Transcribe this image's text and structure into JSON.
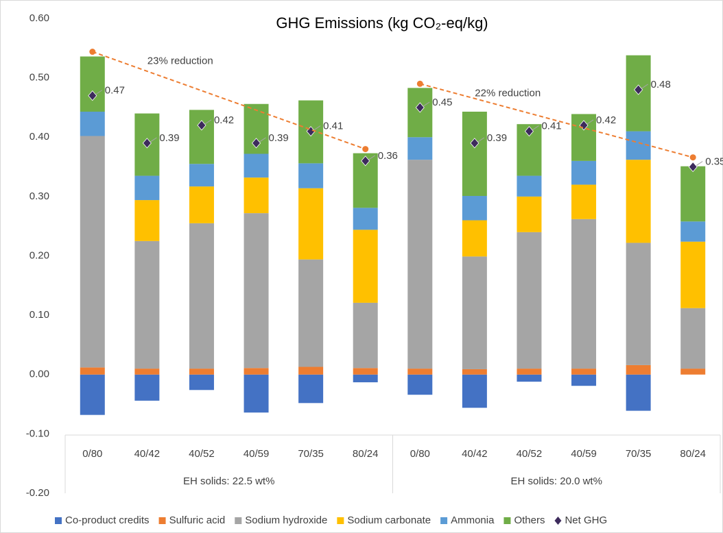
{
  "chart_data": {
    "type": "stacked_bar",
    "title": "GHG Emissions (kg CO₂-eq/kg)",
    "categories": [
      "0/80",
      "40/42",
      "40/52",
      "40/59",
      "70/35",
      "80/24",
      "0/80",
      "40/42",
      "40/52",
      "40/59",
      "70/35",
      "80/24"
    ],
    "groups": [
      {
        "label": "EH solids: 22.5 wt%",
        "reduction": "23% reduction",
        "start": 0.544,
        "end": 0.38
      },
      {
        "label": "EH solids: 20.0 wt%",
        "reduction": "22% reduction",
        "start": 0.49,
        "end": 0.366
      }
    ],
    "series": [
      {
        "name": "Co-product credits",
        "color": "#4472c4",
        "values": [
          -0.068,
          -0.044,
          -0.026,
          -0.064,
          -0.048,
          -0.013,
          -0.034,
          -0.056,
          -0.012,
          -0.019,
          -0.061,
          0
        ]
      },
      {
        "name": "Sulfuric acid",
        "color": "#ed7d31",
        "values": [
          0.012,
          0.01,
          0.01,
          0.011,
          0.013,
          0.011,
          0.01,
          0.009,
          0.01,
          0.01,
          0.016,
          0.01
        ]
      },
      {
        "name": "Sodium hydroxide",
        "color": "#a5a5a5",
        "values": [
          0.39,
          0.215,
          0.245,
          0.261,
          0.181,
          0.11,
          0.352,
          0.19,
          0.23,
          0.252,
          0.206,
          0.102
        ]
      },
      {
        "name": "Sodium carbonate",
        "color": "#ffc000",
        "values": [
          0,
          0.069,
          0.062,
          0.06,
          0.12,
          0.123,
          0,
          0.061,
          0.06,
          0.058,
          0.14,
          0.112
        ]
      },
      {
        "name": "Ammonia",
        "color": "#5b9bd5",
        "values": [
          0.041,
          0.041,
          0.038,
          0.04,
          0.042,
          0.037,
          0.038,
          0.041,
          0.035,
          0.04,
          0.048,
          0.034
        ]
      },
      {
        "name": "Others",
        "color": "#70ad47",
        "values": [
          0.093,
          0.105,
          0.091,
          0.084,
          0.106,
          0.092,
          0.083,
          0.142,
          0.087,
          0.079,
          0.128,
          0.093
        ]
      }
    ],
    "net": {
      "name": "Net GHG",
      "color": "#3d2b5c",
      "values": [
        0.47,
        0.39,
        0.42,
        0.39,
        0.41,
        0.36,
        0.45,
        0.39,
        0.41,
        0.42,
        0.48,
        0.35
      ]
    },
    "reduction_color": "#ed7d31",
    "ylim": [
      -0.2,
      0.6
    ],
    "yticks": [
      {
        "value": 0.6,
        "label": "0.60"
      },
      {
        "value": 0.5,
        "label": "0.50"
      },
      {
        "value": 0.4,
        "label": "0.40"
      },
      {
        "value": 0.3,
        "label": "0.30"
      },
      {
        "value": 0.2,
        "label": "0.20"
      },
      {
        "value": 0.1,
        "label": "0.10"
      },
      {
        "value": 0,
        "label": "0.00"
      },
      {
        "value": -0.1,
        "label": "-0.10"
      },
      {
        "value": -0.2,
        "label": "-0.20"
      }
    ],
    "grid": false
  }
}
